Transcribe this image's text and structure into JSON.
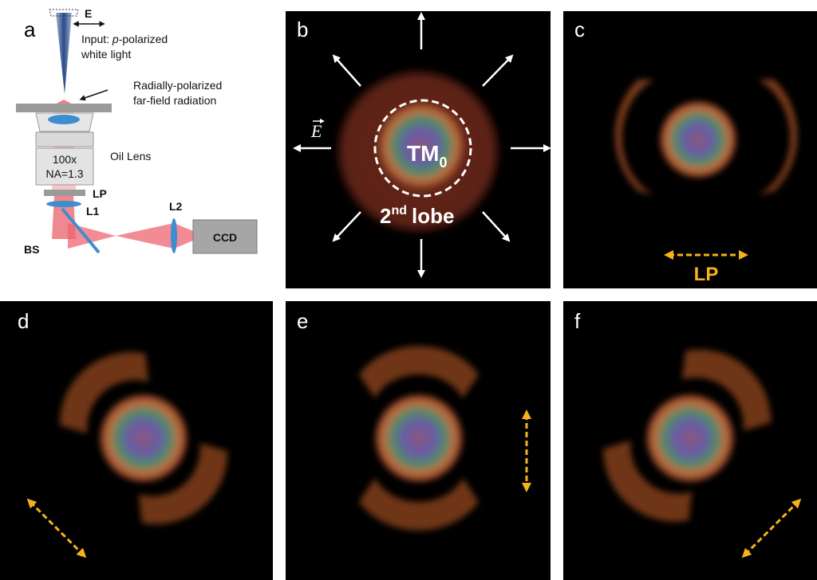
{
  "panels": [
    {
      "label": "a"
    },
    {
      "label": "b"
    },
    {
      "label": "c"
    },
    {
      "label": "d"
    },
    {
      "label": "e"
    },
    {
      "label": "f"
    }
  ],
  "schematic": {
    "field": "E",
    "input_prefix": "Input: ",
    "input_italic": "p",
    "input_suffix": "-polarized",
    "input_line2": "white light",
    "radiation_line1": "Radially-polarized",
    "radiation_line2": "far-field radiation",
    "lens": "Oil Lens",
    "magnification": "100x",
    "aperture": "NA=1.3",
    "polarizer": "LP",
    "lens1": "L1",
    "lens2": "L2",
    "splitter": "BS",
    "camera": "CCD"
  },
  "panel_b": {
    "field": "E",
    "mode": "TM",
    "mode_subscript": "0",
    "lobe_number": "2",
    "lobe_superscript": "nd",
    "lobe_word": "lobe"
  },
  "panel_c": {
    "polarizer": "LP"
  }
}
